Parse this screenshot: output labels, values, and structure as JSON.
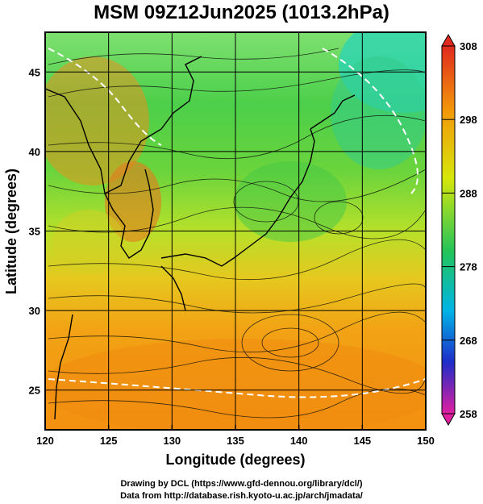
{
  "title": "MSM 09Z12Jun2025 (1013.2hPa)",
  "map": {
    "x_axis_label": "Longitude (degrees)",
    "y_axis_label": "Latitude  (degrees)",
    "x_ticks": [
      120,
      125,
      130,
      135,
      140,
      145,
      150
    ],
    "y_ticks": [
      25,
      30,
      35,
      40,
      45
    ],
    "x_range": [
      120,
      150
    ],
    "y_range": [
      22.5,
      47.5
    ]
  },
  "colorbar": {
    "ticks": [
      308,
      298,
      288,
      278,
      268,
      258
    ],
    "min": 258,
    "max": 308,
    "colors": [
      "#e0208c",
      "#1f2cc8",
      "#00b4e6",
      "#22c45a",
      "#d6e60a",
      "#f39a0a",
      "#e02a1e"
    ]
  },
  "footer": {
    "line1": "Drawing by DCL (https://www.gfd-dennou.org/library/dcl/)",
    "line2": "Data from http://database.rish.kyoto-u.ac.jp/arch/jmadata/"
  }
}
